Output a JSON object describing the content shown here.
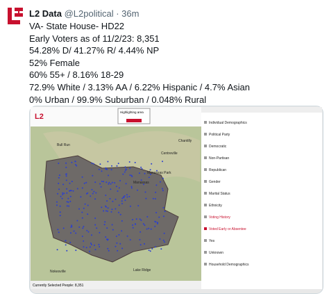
{
  "post": {
    "name": "L2 Data",
    "handle": "@L2political",
    "time": "· 36m",
    "lines": [
      "VA- State House- HD22",
      "Early Voters as of 11/2/23: 8,351",
      "54.28% D/ 41.27% R/ 4.44% NP",
      "52% Female",
      "60% 55+ / 8.16% 18-29",
      "72.9% White / 3.13% AA / 6.22% Hispanic / 4.7% Asian",
      "0% Urban / 99.9% Suburban / 0.048% Rural"
    ]
  },
  "image": {
    "logo": "L2",
    "map_labels": [
      "Bull Run",
      "Manassas",
      "Manassas Park",
      "Centreville",
      "Chantilly",
      "Lake Ridge",
      "Nokesville"
    ],
    "highlight": "Highlighting area",
    "panel_items": [
      "Individual Demographics",
      "Political Party",
      "Democratic",
      "Non-Partisan",
      "Republican",
      "Gender",
      "Marital Status",
      "Ethnicity",
      "Voting History",
      "Voted Early or Absentee",
      "Yes",
      "Unknown",
      "Household Demographics"
    ],
    "status": "Currently Selected People: 8,351"
  }
}
